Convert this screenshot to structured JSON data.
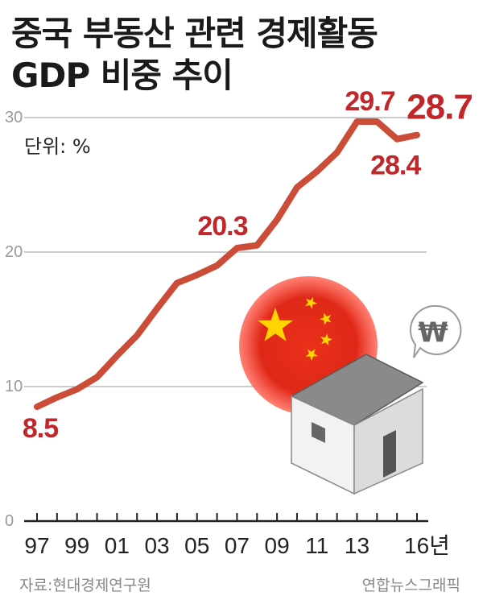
{
  "title_line1": "중국 부동산 관련 경제활동",
  "title_line2": "GDP 비중 추이",
  "unit_label": "단위: %",
  "source": "자료:현대경제연구원",
  "credit": "연합뉴스그래픽",
  "colors": {
    "line": "#c8432c",
    "label": "#c0262a",
    "grid": "#bbbbbb",
    "flag_red": "#e02818",
    "star": "#ffd400"
  },
  "icons": [
    "china-flag-circle-icon",
    "house-icon",
    "won-speech-bubble-icon"
  ],
  "chart_data": {
    "type": "line",
    "title": "중국 부동산 관련 경제활동 GDP 비중 추이",
    "ylabel": "단위: %",
    "ylim": [
      0,
      30
    ],
    "yticks": [
      0,
      10,
      20,
      30
    ],
    "grid": true,
    "x": [
      1997,
      1998,
      1999,
      2000,
      2001,
      2002,
      2003,
      2004,
      2005,
      2006,
      2007,
      2008,
      2009,
      2010,
      2011,
      2012,
      2013,
      2014,
      2015,
      2016
    ],
    "xticks": [
      1997,
      1999,
      2001,
      2003,
      2005,
      2007,
      2009,
      2011,
      2013,
      2016
    ],
    "xticklabels": [
      "97",
      "99",
      "01",
      "03",
      "05",
      "07",
      "09",
      "11",
      "13",
      "16년"
    ],
    "series": [
      {
        "values": [
          8.5,
          9.2,
          9.8,
          10.7,
          12.3,
          13.8,
          15.8,
          17.7,
          18.3,
          19.0,
          20.3,
          20.5,
          22.4,
          24.8,
          26.0,
          27.4,
          29.7,
          29.7,
          28.4,
          28.7
        ]
      }
    ],
    "labels": [
      {
        "x": 1997,
        "text": "8.5"
      },
      {
        "x": 2007,
        "text": "20.3"
      },
      {
        "x": 2013,
        "text": "29.7"
      },
      {
        "x": 2015,
        "text": "28.4"
      },
      {
        "x": 2016,
        "text": "28.7"
      }
    ]
  }
}
